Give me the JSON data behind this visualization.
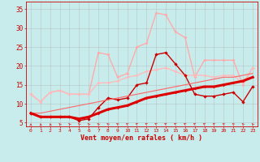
{
  "x": [
    0,
    1,
    2,
    3,
    4,
    5,
    6,
    7,
    8,
    9,
    10,
    11,
    12,
    13,
    14,
    15,
    16,
    17,
    18,
    19,
    20,
    21,
    22,
    23
  ],
  "line1_bright_pink": [
    12.5,
    10.5,
    13.0,
    13.5,
    12.5,
    12.5,
    12.5,
    23.5,
    23.0,
    17.0,
    18.0,
    25.0,
    26.0,
    34.0,
    33.5,
    29.0,
    27.5,
    17.0,
    21.5,
    21.5,
    21.5,
    21.5,
    15.0,
    19.5
  ],
  "line2_pink": [
    12.5,
    10.5,
    13.0,
    13.5,
    12.5,
    12.5,
    12.5,
    15.5,
    15.5,
    16.0,
    17.0,
    17.5,
    18.5,
    19.0,
    19.5,
    18.5,
    17.5,
    17.5,
    17.5,
    17.0,
    17.5,
    17.5,
    15.5,
    19.5
  ],
  "line3_dark_red_thick": [
    7.5,
    6.5,
    6.5,
    6.5,
    6.5,
    6.0,
    6.5,
    7.5,
    8.5,
    9.0,
    9.5,
    10.5,
    11.5,
    12.0,
    12.5,
    13.0,
    13.5,
    14.0,
    14.5,
    14.5,
    15.0,
    15.5,
    16.0,
    17.0
  ],
  "line4_dark_red": [
    7.5,
    6.5,
    6.5,
    6.5,
    6.5,
    5.5,
    6.0,
    9.0,
    11.5,
    11.0,
    11.5,
    15.0,
    15.5,
    23.0,
    23.5,
    20.5,
    17.5,
    12.5,
    12.0,
    12.0,
    12.5,
    13.0,
    10.5,
    14.5
  ],
  "line5_reg": [
    7.5,
    7.5,
    8.0,
    8.5,
    9.0,
    9.5,
    10.0,
    10.5,
    11.0,
    11.5,
    12.0,
    12.5,
    13.0,
    13.5,
    14.0,
    14.5,
    15.0,
    15.5,
    16.0,
    16.5,
    17.0,
    17.0,
    17.5,
    18.0
  ],
  "arrow_angles": [
    90,
    83,
    78,
    73,
    70,
    68,
    67,
    65,
    62,
    58,
    52,
    48,
    45,
    44,
    43,
    43,
    44,
    46,
    48,
    52,
    56,
    60,
    65,
    70
  ],
  "background_color": "#c8ecec",
  "grid_color": "#b0c8c8",
  "xlabel": "Vent moyen/en rafales ( km/h )",
  "yticks": [
    5,
    10,
    15,
    20,
    25,
    30,
    35
  ],
  "xlim": [
    -0.5,
    23.5
  ],
  "ylim": [
    4.0,
    37.0
  ]
}
